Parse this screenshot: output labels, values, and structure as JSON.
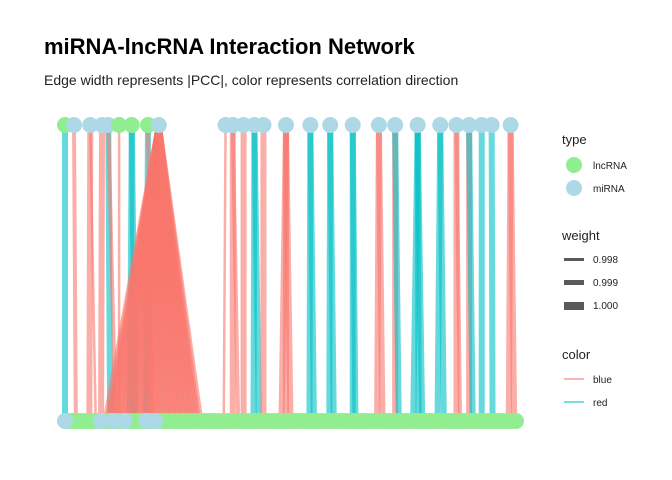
{
  "chart_data": {
    "type": "network",
    "title": "miRNA-lncRNA Interaction Network",
    "subtitle": "Edge width represents |PCC|, color represents correlation direction",
    "node_types": [
      {
        "label": "lncRNA",
        "color": "#90EE90"
      },
      {
        "label": "miRNA",
        "color": "#ADD8E6"
      }
    ],
    "weight_legend": {
      "title": "weight",
      "values": [
        "0.998",
        "0.999",
        "1.000"
      ]
    },
    "color_legend": {
      "title": "color",
      "entries": [
        {
          "label": "blue",
          "color": "#F8766D"
        },
        {
          "label": "red",
          "color": "#00BFC4"
        }
      ]
    },
    "type_legend_title": "type",
    "top_nodes": [
      {
        "x": 0.0,
        "type": "lncRNA"
      },
      {
        "x": 1.0,
        "type": "miRNA"
      },
      {
        "x": 2.8,
        "type": "miRNA"
      },
      {
        "x": 4.1,
        "type": "miRNA"
      },
      {
        "x": 4.8,
        "type": "miRNA"
      },
      {
        "x": 6.0,
        "type": "lncRNA"
      },
      {
        "x": 7.4,
        "type": "lncRNA"
      },
      {
        "x": 9.2,
        "type": "lncRNA"
      },
      {
        "x": 10.4,
        "type": "miRNA"
      },
      {
        "x": 17.8,
        "type": "miRNA"
      },
      {
        "x": 18.6,
        "type": "miRNA"
      },
      {
        "x": 19.8,
        "type": "miRNA"
      },
      {
        "x": 21.0,
        "type": "miRNA"
      },
      {
        "x": 22.0,
        "type": "miRNA"
      },
      {
        "x": 24.5,
        "type": "miRNA"
      },
      {
        "x": 27.2,
        "type": "miRNA"
      },
      {
        "x": 29.4,
        "type": "miRNA"
      },
      {
        "x": 31.9,
        "type": "miRNA"
      },
      {
        "x": 34.8,
        "type": "miRNA"
      },
      {
        "x": 36.6,
        "type": "miRNA"
      },
      {
        "x": 39.1,
        "type": "miRNA"
      },
      {
        "x": 41.6,
        "type": "miRNA"
      },
      {
        "x": 43.4,
        "type": "miRNA"
      },
      {
        "x": 44.8,
        "type": "miRNA"
      },
      {
        "x": 46.2,
        "type": "miRNA"
      },
      {
        "x": 47.3,
        "type": "miRNA"
      },
      {
        "x": 49.4,
        "type": "miRNA"
      }
    ],
    "bottom_nodes": [
      {
        "x": 0.0,
        "type": "miRNA"
      },
      {
        "x": 4.0,
        "type": "miRNA"
      },
      {
        "x": 5.4,
        "type": "miRNA"
      },
      {
        "x": 6.6,
        "type": "miRNA"
      },
      {
        "x": 9.0,
        "type": "miRNA"
      },
      {
        "x": 10.0,
        "type": "miRNA"
      }
    ],
    "bottom_range": [
      0,
      50
    ],
    "edges": [
      {
        "from": 0.0,
        "to": 0.0,
        "dir": "red",
        "w": 1.0
      },
      {
        "from": 1.0,
        "to": 1.2,
        "dir": "blue",
        "w": 0.999
      },
      {
        "from": 2.8,
        "to": 2.7,
        "dir": "blue",
        "w": 1.0
      },
      {
        "from": 2.8,
        "to": 3.4,
        "dir": "blue",
        "w": 0.998
      },
      {
        "from": 4.1,
        "to": 4.0,
        "dir": "blue",
        "w": 1.0
      },
      {
        "from": 4.8,
        "to": 5.0,
        "dir": "red",
        "w": 1.0
      },
      {
        "from": 4.8,
        "to": 5.6,
        "dir": "blue",
        "w": 0.999
      },
      {
        "from": 6.0,
        "to": 6.0,
        "dir": "blue",
        "w": 0.998
      },
      {
        "from": 7.4,
        "to": 7.2,
        "dir": "red",
        "w": 1.0
      },
      {
        "from": 7.4,
        "to": 7.8,
        "dir": "red",
        "w": 1.0
      },
      {
        "from": 9.2,
        "to": 9.0,
        "dir": "red",
        "w": 1.0
      },
      {
        "from": 9.2,
        "to": 9.6,
        "dir": "blue",
        "w": 0.999
      },
      {
        "from": 17.8,
        "to": 17.6,
        "dir": "blue",
        "w": 0.998
      },
      {
        "from": 18.6,
        "to": 18.6,
        "dir": "blue",
        "w": 1.0
      },
      {
        "from": 18.6,
        "to": 19.2,
        "dir": "blue",
        "w": 0.999
      },
      {
        "from": 19.8,
        "to": 19.8,
        "dir": "blue",
        "w": 1.0
      },
      {
        "from": 21.0,
        "to": 20.9,
        "dir": "red",
        "w": 1.0
      },
      {
        "from": 21.0,
        "to": 21.5,
        "dir": "red",
        "w": 1.0
      },
      {
        "from": 22.0,
        "to": 22.0,
        "dir": "blue",
        "w": 1.0
      },
      {
        "from": 24.5,
        "to": 24.0,
        "dir": "blue",
        "w": 1.0
      },
      {
        "from": 24.5,
        "to": 25.0,
        "dir": "blue",
        "w": 1.0
      },
      {
        "from": 24.5,
        "to": 24.5,
        "dir": "blue",
        "w": 1.0
      },
      {
        "from": 27.2,
        "to": 27.1,
        "dir": "red",
        "w": 1.0
      },
      {
        "from": 27.2,
        "to": 27.6,
        "dir": "red",
        "w": 1.0
      },
      {
        "from": 29.4,
        "to": 29.3,
        "dir": "red",
        "w": 1.0
      },
      {
        "from": 29.4,
        "to": 29.8,
        "dir": "red",
        "w": 1.0
      },
      {
        "from": 31.9,
        "to": 31.9,
        "dir": "red",
        "w": 1.0
      },
      {
        "from": 31.9,
        "to": 32.2,
        "dir": "red",
        "w": 1.0
      },
      {
        "from": 34.8,
        "to": 34.6,
        "dir": "blue",
        "w": 1.0
      },
      {
        "from": 34.8,
        "to": 35.2,
        "dir": "blue",
        "w": 1.0
      },
      {
        "from": 36.6,
        "to": 36.6,
        "dir": "blue",
        "w": 1.0
      },
      {
        "from": 36.6,
        "to": 37.0,
        "dir": "red",
        "w": 1.0
      },
      {
        "from": 39.1,
        "to": 38.6,
        "dir": "red",
        "w": 1.0
      },
      {
        "from": 39.1,
        "to": 39.6,
        "dir": "red",
        "w": 1.0
      },
      {
        "from": 39.1,
        "to": 39.2,
        "dir": "red",
        "w": 1.0
      },
      {
        "from": 41.6,
        "to": 41.3,
        "dir": "red",
        "w": 1.0
      },
      {
        "from": 41.6,
        "to": 42.0,
        "dir": "red",
        "w": 1.0
      },
      {
        "from": 43.4,
        "to": 43.4,
        "dir": "blue",
        "w": 1.0
      },
      {
        "from": 43.4,
        "to": 43.8,
        "dir": "blue",
        "w": 0.999
      },
      {
        "from": 44.8,
        "to": 44.8,
        "dir": "blue",
        "w": 1.0
      },
      {
        "from": 44.8,
        "to": 45.2,
        "dir": "red",
        "w": 1.0
      },
      {
        "from": 46.2,
        "to": 46.2,
        "dir": "red",
        "w": 1.0
      },
      {
        "from": 47.3,
        "to": 47.4,
        "dir": "red",
        "w": 1.0
      },
      {
        "from": 49.4,
        "to": 49.2,
        "dir": "blue",
        "w": 1.0
      },
      {
        "from": 49.4,
        "to": 49.8,
        "dir": "blue",
        "w": 1.0
      }
    ],
    "fan_hub": {
      "from": 10.4,
      "to_range": [
        4.5,
        15.0
      ],
      "count": 40,
      "dir": "blue",
      "w": 1.0
    }
  }
}
